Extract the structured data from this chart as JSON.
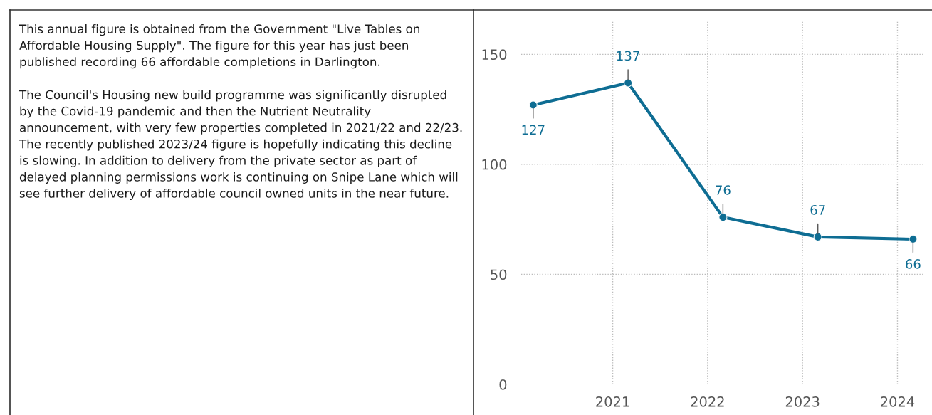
{
  "chart_data": {
    "type": "line",
    "x": [
      "2020-03",
      "2021-03",
      "2022-03",
      "2023-03",
      "2024-03"
    ],
    "series": [
      {
        "color": "#0e6d93",
        "values": [
          127,
          137,
          76,
          67,
          66
        ]
      }
    ],
    "xlim": [
      "2020-01-15",
      "2024-04-10"
    ],
    "xticks": [
      {
        "value": "2021-01-01",
        "label": "2021"
      },
      {
        "value": "2022-01-01",
        "label": "2022"
      },
      {
        "value": "2023-01-01",
        "label": "2023"
      },
      {
        "value": "2024-01-01",
        "label": "2024"
      }
    ],
    "ylim": [
      0,
      165
    ],
    "yticks": [
      0,
      50,
      100,
      150
    ],
    "grid": true,
    "marker": "circle",
    "line_style": "solid",
    "data_labels": true,
    "annotations": [
      "This annual figure is obtained from the Government \"Live Tables on Affordable Housing Supply\". The figure for this year has just been published recording 66 affordable completions in Darlington.\n\nThe Council's Housing new build programme was significantly disrupted by the Covid-19 pandemic and then the Nutrient Neutrality announcement, with very few properties completed in 2021/22 and 22/23. The recently published 2023/24 figure is hopefully indicating this decline is slowing. In addition to delivery from the private sector as part of delayed planning permissions work is continuing on Snipe Lane which will see further delivery of affordable council owned units in the near future."
    ]
  }
}
